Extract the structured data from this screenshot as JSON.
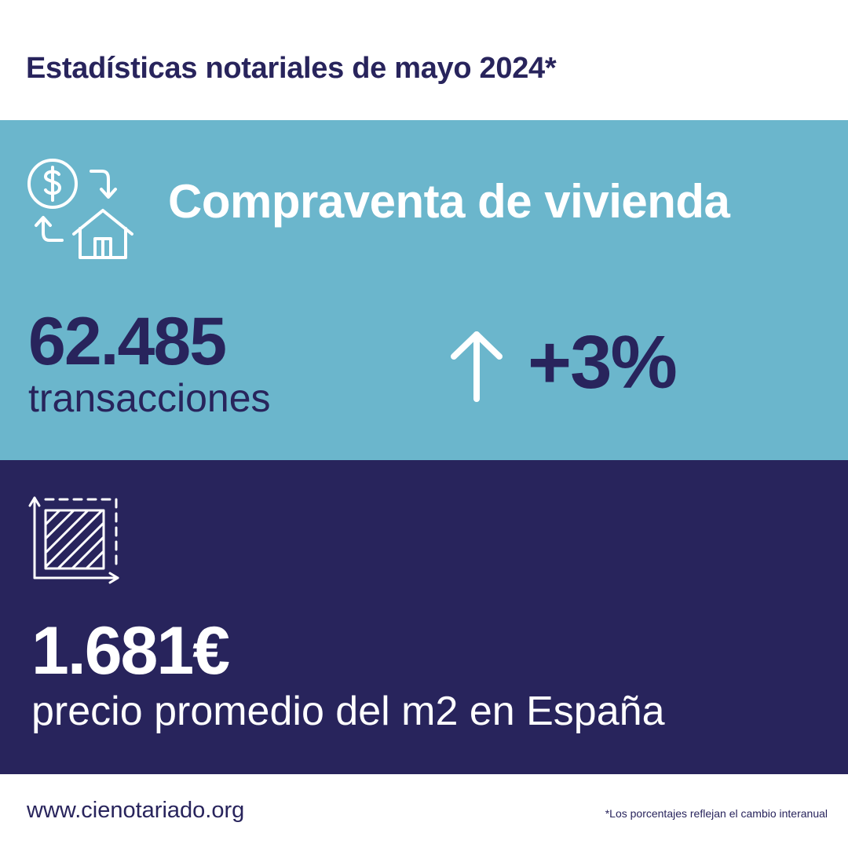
{
  "header": {
    "title": "Estadísticas notariales de mayo 2024*"
  },
  "housing": {
    "icon": "money-house-exchange-icon",
    "heading": "Compraventa de vivienda",
    "transactions_value": "62.485",
    "transactions_label": "transacciones",
    "change_icon": "arrow-up-icon",
    "change_value": "+3%"
  },
  "price": {
    "icon": "area-square-meter-icon",
    "value": "1.681€",
    "label": "precio promedio del m2 en España"
  },
  "footer": {
    "website": "www.cienotariado.org",
    "note": "*Los porcentajes reflejan el cambio interanual"
  },
  "colors": {
    "navy": "#28245c",
    "light_blue": "#6bb6cc",
    "white": "#ffffff"
  }
}
